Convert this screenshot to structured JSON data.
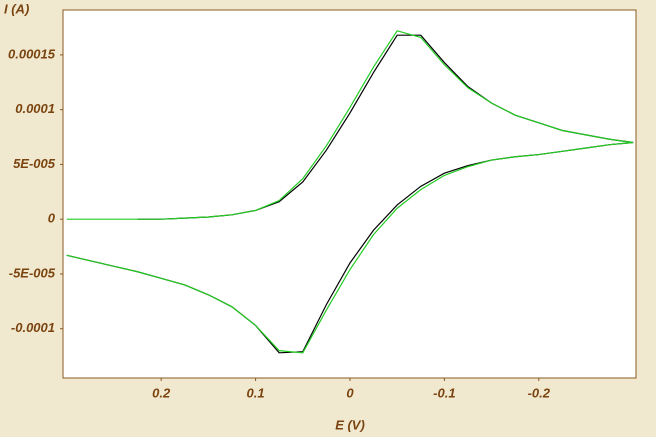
{
  "chart_data": {
    "type": "line",
    "x_label": "E (V)",
    "y_label": "I (A)",
    "x": [
      0.3,
      0.275,
      0.25,
      0.225,
      0.2,
      0.175,
      0.15,
      0.125,
      0.1,
      0.075,
      0.05,
      0.025,
      0,
      -0.025,
      -0.05,
      -0.075,
      -0.1,
      -0.125,
      -0.15,
      -0.175,
      -0.2,
      -0.225,
      -0.25,
      -0.275,
      -0.3,
      -0.275,
      -0.25,
      -0.225,
      -0.2,
      -0.175,
      -0.15,
      -0.125,
      -0.1,
      -0.075,
      -0.05,
      -0.025,
      0,
      0.025,
      0.05,
      0.075,
      0.1,
      0.125,
      0.15,
      0.175,
      0.2,
      0.225,
      0.25,
      0.275,
      0.3
    ],
    "series": [
      {
        "color": "#000000",
        "values": [
          null,
          null,
          null,
          0,
          0,
          1e-06,
          2e-06,
          4e-06,
          8e-06,
          1.6e-05,
          3.4e-05,
          6.3e-05,
          9.7e-05,
          0.000134,
          0.000168,
          0.000168,
          0.000143,
          0.000121,
          0.000106,
          9.5e-05,
          8.8e-05,
          8.1e-05,
          7.7e-05,
          7.3e-05,
          7e-05,
          6.8e-05,
          6.5e-05,
          6.2e-05,
          5.9e-05,
          5.7e-05,
          5.4e-05,
          4.9e-05,
          4.2e-05,
          3e-05,
          1.3e-05,
          -1e-05,
          -4e-05,
          -7.8e-05,
          -0.000121,
          -0.000122,
          -9.7e-05,
          -8e-05,
          -6.9e-05,
          -6e-05,
          -5.4e-05,
          -4.8e-05,
          -4.3e-05,
          -3.8e-05,
          -3.3e-05
        ]
      },
      {
        "color": "#22cc22",
        "values": [
          0,
          0,
          0,
          0,
          0,
          1e-06,
          2e-06,
          4e-06,
          8e-06,
          1.7e-05,
          3.7e-05,
          6.7e-05,
          0.000102,
          0.000139,
          0.000172,
          0.000166,
          0.000141,
          0.00012,
          0.000106,
          9.5e-05,
          8.8e-05,
          8.1e-05,
          7.7e-05,
          7.3e-05,
          7e-05,
          6.8e-05,
          6.5e-05,
          6.2e-05,
          5.9e-05,
          5.7e-05,
          5.4e-05,
          4.8e-05,
          4e-05,
          2.7e-05,
          1e-05,
          -1.4e-05,
          -4.6e-05,
          -8.3e-05,
          -0.000122,
          -0.00012,
          -9.7e-05,
          -8e-05,
          -6.9e-05,
          -6e-05,
          -5.4e-05,
          -4.8e-05,
          -4.3e-05,
          -3.8e-05,
          -3.3e-05
        ]
      }
    ],
    "xlim": [
      0.304,
      -0.303
    ],
    "ylim": [
      -0.000145,
      0.000191
    ],
    "xticks": [
      0.2,
      0.1,
      0,
      -0.1,
      -0.2
    ],
    "yticks": [
      0.00015,
      0.0001,
      {
        "value": 5e-05,
        "label": "5E-005"
      },
      0,
      {
        "value": -5e-05,
        "label": "-5E-005"
      },
      -0.0001
    ],
    "grid": false
  }
}
